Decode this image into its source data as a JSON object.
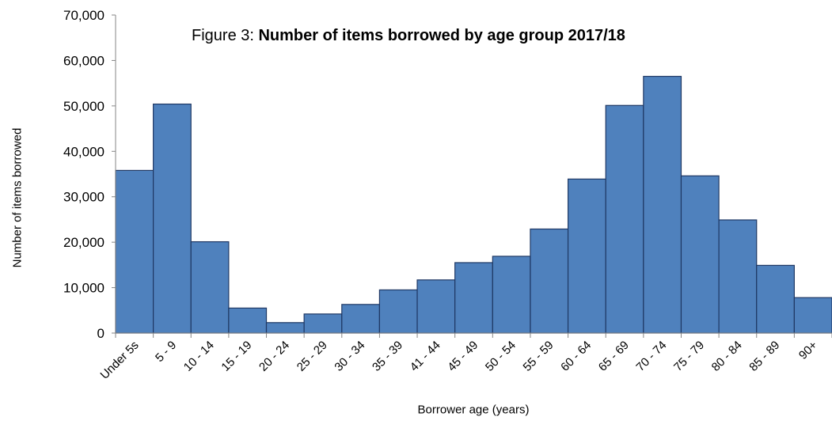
{
  "chart_data": {
    "type": "bar",
    "title_prefix": "Figure 3: ",
    "title": "Number of items borrowed by age group 2017/18",
    "xlabel": "Borrower age (years)",
    "ylabel": "Number of items borrowed",
    "categories": [
      "Under 5s",
      "5 - 9",
      "10 - 14",
      "15 - 19",
      "20 - 24",
      "25 - 29",
      "30 - 34",
      "35 - 39",
      "41 - 44",
      "45 - 49",
      "50 - 54",
      "55 - 59",
      "60 - 64",
      "65 - 69",
      "70 - 74",
      "75 - 79",
      "80 - 84",
      "85 - 89",
      "90+"
    ],
    "values": [
      35800,
      50400,
      20100,
      5500,
      2300,
      4200,
      6300,
      9500,
      11700,
      15500,
      16900,
      22900,
      33900,
      50100,
      56500,
      34600,
      24900,
      14900,
      7800
    ],
    "ylim": [
      0,
      70000
    ],
    "yticks": [
      0,
      10000,
      20000,
      30000,
      40000,
      50000,
      60000,
      70000
    ],
    "ytick_labels": [
      "0",
      "10,000",
      "20,000",
      "30,000",
      "40,000",
      "50,000",
      "60,000",
      "70,000"
    ],
    "grid": false,
    "legend": "none",
    "bar_color": "#4f81bd",
    "bar_edge_color": "#1f3864"
  }
}
